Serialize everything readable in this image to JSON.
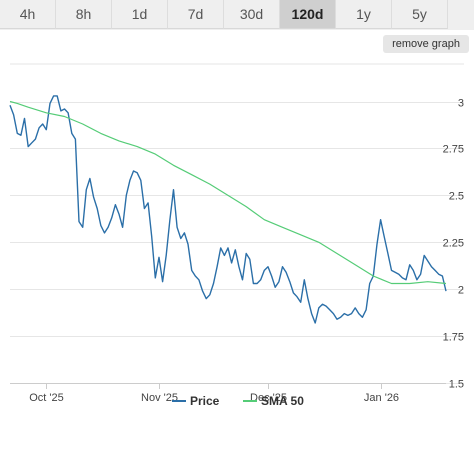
{
  "toolbar": {
    "ranges": [
      "4h",
      "8h",
      "1d",
      "7d",
      "30d",
      "120d",
      "1y",
      "5y"
    ],
    "active_range": "120d",
    "remove_label": "remove graph"
  },
  "colors": {
    "price": "#2b6fa8",
    "sma": "#55cc77",
    "grid": "#e6e6e6",
    "axis": "#cccccc"
  },
  "chart_data": {
    "type": "line",
    "title": "",
    "xlabel": "",
    "ylabel": "",
    "ylim": [
      1.5,
      3.2
    ],
    "xlim": [
      0,
      120
    ],
    "y_ticks": [
      1.5,
      1.75,
      2,
      2.25,
      2.5,
      2.75,
      3
    ],
    "y_tick_labels": [
      "1.5",
      "1.75",
      "2",
      "2.25",
      "2.5",
      "2.75",
      "3"
    ],
    "x_ticks": [
      {
        "label": "Oct '25",
        "x": 10
      },
      {
        "label": "Nov '25",
        "x": 41
      },
      {
        "label": "Dec '25",
        "x": 71
      },
      {
        "label": "Jan '26",
        "x": 102
      }
    ],
    "grid": "horizontal",
    "legend": "bottom-center",
    "series": [
      {
        "name": "Price",
        "x": [
          0,
          1,
          2,
          3,
          4,
          5,
          6,
          7,
          8,
          9,
          10,
          11,
          12,
          13,
          14,
          15,
          16,
          17,
          18,
          19,
          20,
          21,
          22,
          23,
          24,
          25,
          26,
          27,
          28,
          29,
          30,
          31,
          32,
          33,
          34,
          35,
          36,
          37,
          38,
          39,
          40,
          41,
          42,
          43,
          44,
          45,
          46,
          47,
          48,
          49,
          50,
          51,
          52,
          53,
          54,
          55,
          56,
          57,
          58,
          59,
          60,
          61,
          62,
          63,
          64,
          65,
          66,
          67,
          68,
          69,
          70,
          71,
          72,
          73,
          74,
          75,
          76,
          77,
          78,
          79,
          80,
          81,
          82,
          83,
          84,
          85,
          86,
          87,
          88,
          89,
          90,
          91,
          92,
          93,
          94,
          95,
          96,
          97,
          98,
          99,
          100,
          101,
          102,
          103,
          104,
          105,
          106,
          107,
          108,
          109,
          110,
          111,
          112,
          113,
          114,
          115,
          116,
          117,
          118,
          119,
          120
        ],
        "values": [
          2.98,
          2.93,
          2.83,
          2.82,
          2.91,
          2.76,
          2.78,
          2.8,
          2.86,
          2.88,
          2.85,
          2.99,
          3.03,
          3.03,
          2.95,
          2.96,
          2.94,
          2.83,
          2.8,
          2.36,
          2.33,
          2.53,
          2.59,
          2.49,
          2.43,
          2.34,
          2.3,
          2.33,
          2.38,
          2.45,
          2.4,
          2.33,
          2.5,
          2.58,
          2.63,
          2.62,
          2.58,
          2.43,
          2.46,
          2.28,
          2.06,
          2.17,
          2.04,
          2.18,
          2.37,
          2.53,
          2.33,
          2.27,
          2.3,
          2.24,
          2.1,
          2.07,
          2.05,
          1.99,
          1.95,
          1.97,
          2.03,
          2.12,
          2.22,
          2.18,
          2.22,
          2.14,
          2.21,
          2.12,
          2.05,
          2.19,
          2.16,
          2.03,
          2.03,
          2.05,
          2.1,
          2.12,
          2.07,
          2.01,
          2.04,
          2.12,
          2.09,
          2.04,
          1.98,
          1.96,
          1.93,
          2.05,
          1.95,
          1.87,
          1.82,
          1.9,
          1.92,
          1.91,
          1.89,
          1.87,
          1.84,
          1.85,
          1.87,
          1.86,
          1.87,
          1.9,
          1.87,
          1.85,
          1.89,
          2.03,
          2.07,
          2.24,
          2.37,
          2.28,
          2.19,
          2.1,
          2.09,
          2.08,
          2.06,
          2.05,
          2.13,
          2.1,
          2.05,
          2.08,
          2.18,
          2.15,
          2.12,
          2.1,
          2.08,
          2.07,
          1.99
        ]
      },
      {
        "name": "SMA 50",
        "x": [
          0,
          2,
          5,
          10,
          15,
          20,
          25,
          30,
          35,
          40,
          45,
          50,
          55,
          60,
          65,
          70,
          75,
          80,
          85,
          90,
          95,
          100,
          105,
          110,
          115,
          120
        ],
        "values": [
          3.0,
          2.99,
          2.97,
          2.94,
          2.92,
          2.88,
          2.83,
          2.79,
          2.76,
          2.72,
          2.66,
          2.61,
          2.56,
          2.5,
          2.44,
          2.37,
          2.33,
          2.29,
          2.25,
          2.19,
          2.13,
          2.07,
          2.03,
          2.03,
          2.04,
          2.03
        ]
      }
    ]
  }
}
